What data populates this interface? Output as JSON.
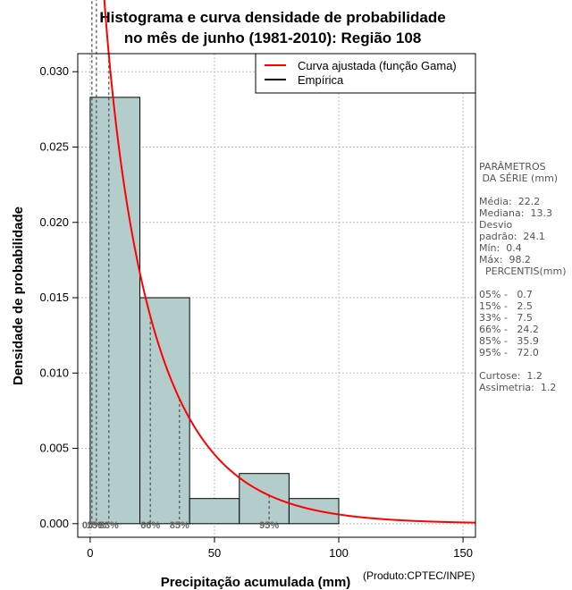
{
  "chart_data": {
    "type": "bar",
    "title_line1": "Histograma e curva densidade de probabilidade",
    "title_line2": "no mês de junho (1981-2010): Região 108",
    "xlabel": "Precipitação acumulada (mm)",
    "ylabel": "Densidade de probabilidade",
    "xlim": [
      -5,
      155
    ],
    "ylim": [
      -0.0009,
      0.0312
    ],
    "x_ticks": [
      0,
      50,
      100,
      150
    ],
    "y_ticks": [
      0.0,
      0.005,
      0.01,
      0.015,
      0.02,
      0.025,
      0.03
    ],
    "y_tick_labels": [
      "0.000",
      "0.005",
      "0.010",
      "0.015",
      "0.020",
      "0.025",
      "0.030"
    ],
    "grid": true,
    "bins": [
      {
        "start": 0,
        "end": 20,
        "density": 0.0283
      },
      {
        "start": 20,
        "end": 40,
        "density": 0.015
      },
      {
        "start": 40,
        "end": 60,
        "density": 0.00167
      },
      {
        "start": 60,
        "end": 80,
        "density": 0.00333
      },
      {
        "start": 80,
        "end": 100,
        "density": 0.00167
      }
    ],
    "bar_color": "#b3cccc",
    "curve_color": "#ff0000",
    "gamma_curve": {
      "mean": 22.2,
      "sd": 24.1
    },
    "percentiles": [
      {
        "label": "05%",
        "value": 0.7
      },
      {
        "label": "15%",
        "value": 2.5
      },
      {
        "label": "33%",
        "value": 7.5
      },
      {
        "label": "66%",
        "value": 24.2
      },
      {
        "label": "85%",
        "value": 35.9
      },
      {
        "label": "95%",
        "value": 72.0
      }
    ],
    "legend": {
      "position": "top-right",
      "entries": [
        {
          "label": "Curva ajustada (função Gama)",
          "color": "#ff0000"
        },
        {
          "label": "Empírica",
          "color": "#000000"
        }
      ]
    }
  },
  "side_panel": {
    "text": "PARÂMETROS\n DA SÉRIE (mm)\n\nMédia:  22.2\nMediana:  13.3\nDesvio\npadrão:  24.1\nMín:  0.4\nMáx:  98.2\n  PERCENTIS(mm)\n\n05% -   0.7\n15% -   2.5\n33% -   7.5\n66% -   24.2\n85% -   35.9\n95% -   72.0\n\nCurtose:  1.2\nAssimetria:  1.2"
  },
  "credit": "(Produto:CPTEC/INPE)"
}
